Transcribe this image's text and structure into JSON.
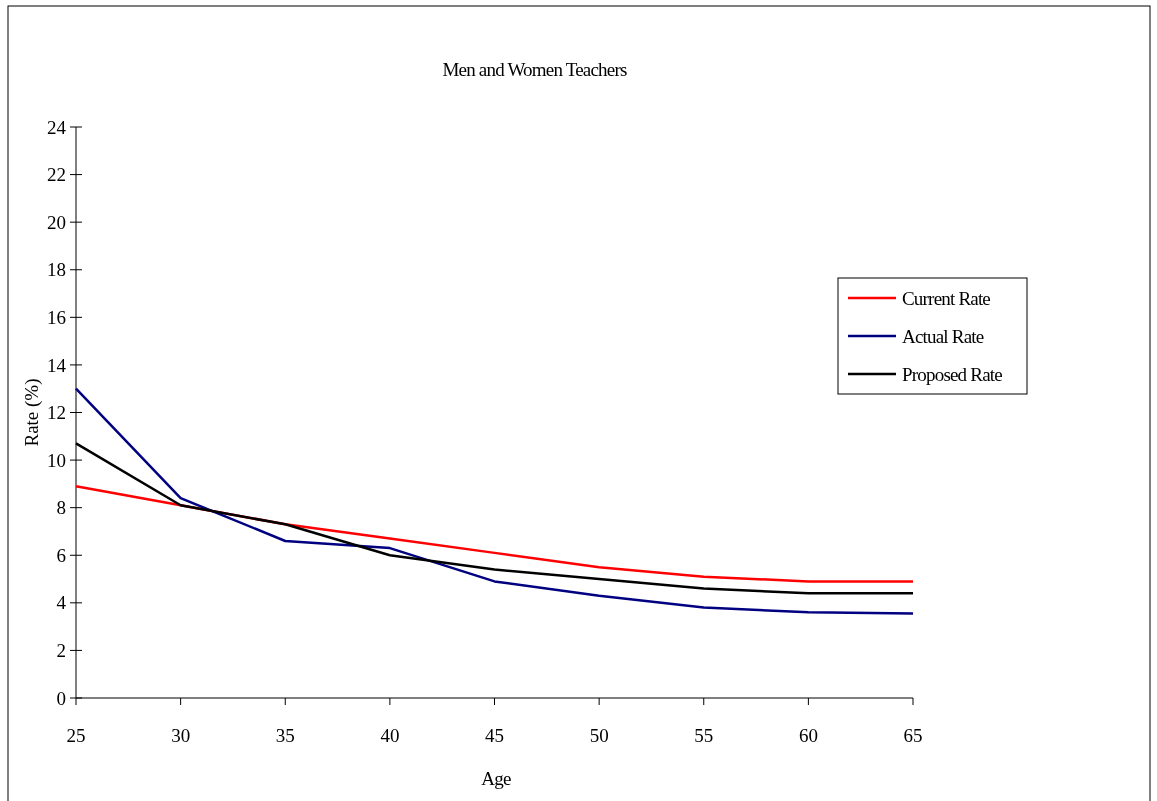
{
  "chart_data": {
    "type": "line",
    "title": "Men and Women Teachers",
    "xlabel": "Age",
    "ylabel": "Rate (%)",
    "x": [
      25,
      30,
      35,
      40,
      45,
      50,
      55,
      60,
      65
    ],
    "xlim": [
      25,
      65
    ],
    "xticks": [
      25,
      30,
      35,
      40,
      45,
      50,
      55,
      60,
      65
    ],
    "ylim": [
      0,
      24
    ],
    "yticks": [
      0,
      2,
      4,
      6,
      8,
      10,
      12,
      14,
      16,
      18,
      20,
      22,
      24
    ],
    "legend": "right",
    "grid": false,
    "marker": "none",
    "line_style": "solid",
    "series": [
      {
        "name": "Current Rate",
        "color": "#ff0000",
        "values": [
          8.9,
          8.1,
          7.3,
          6.7,
          6.1,
          5.5,
          5.1,
          4.9,
          4.9
        ]
      },
      {
        "name": "Actual Rate",
        "color": "#000080",
        "values": [
          13.0,
          8.4,
          6.6,
          6.3,
          4.9,
          4.3,
          3.8,
          3.6,
          3.55
        ]
      },
      {
        "name": "Proposed Rate",
        "color": "#000000",
        "values": [
          10.7,
          8.1,
          7.3,
          6.0,
          5.4,
          5.0,
          4.6,
          4.4,
          4.4
        ]
      }
    ]
  }
}
